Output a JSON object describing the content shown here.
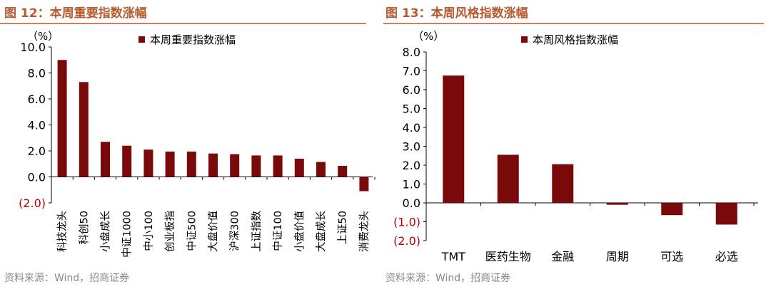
{
  "charts": [
    {
      "panel_title": "图 12：本周重要指数涨幅",
      "source": "资料来源：Wind，招商证券"
    },
    {
      "panel_title": "图 13：本周风格指数涨幅",
      "source": "资料来源：Wind，招商证券"
    }
  ],
  "colors": {
    "bar": "#7a0a0a",
    "title": "#b85a2e",
    "negative_tick": "#c00000"
  },
  "chart_data": [
    {
      "type": "bar",
      "unit_label": "（%）",
      "legend": "本周重要指数涨幅",
      "legend_position": "top",
      "categories": [
        "科技龙头",
        "科创50",
        "小盘成长",
        "中证1000",
        "中小100",
        "创业板指",
        "中证500",
        "大盘价值",
        "沪深300",
        "上证指数",
        "中证100",
        "小盘价值",
        "大盘成长",
        "上证50",
        "消费龙头"
      ],
      "values": [
        9.0,
        7.3,
        2.7,
        2.4,
        2.1,
        1.95,
        1.95,
        1.8,
        1.75,
        1.65,
        1.65,
        1.4,
        1.15,
        0.85,
        -1.1
      ],
      "yticks": [
        "10.0",
        "8.0",
        "6.0",
        "4.0",
        "2.0",
        "0.0",
        "(2.0)"
      ],
      "ylim": [
        -2,
        10
      ],
      "grid": false
    },
    {
      "type": "bar",
      "unit_label": "（%）",
      "legend": "本周风格指数涨幅",
      "legend_position": "top",
      "categories": [
        "TMT",
        "医药生物",
        "金融",
        "周期",
        "可选",
        "必选"
      ],
      "values": [
        6.75,
        2.55,
        2.05,
        -0.1,
        -0.65,
        -1.15
      ],
      "yticks": [
        "8.0",
        "7.0",
        "6.0",
        "5.0",
        "4.0",
        "3.0",
        "2.0",
        "1.0",
        "0.0",
        "(1.0)",
        "(2.0)"
      ],
      "ylim": [
        -2,
        8
      ],
      "grid": false
    }
  ]
}
